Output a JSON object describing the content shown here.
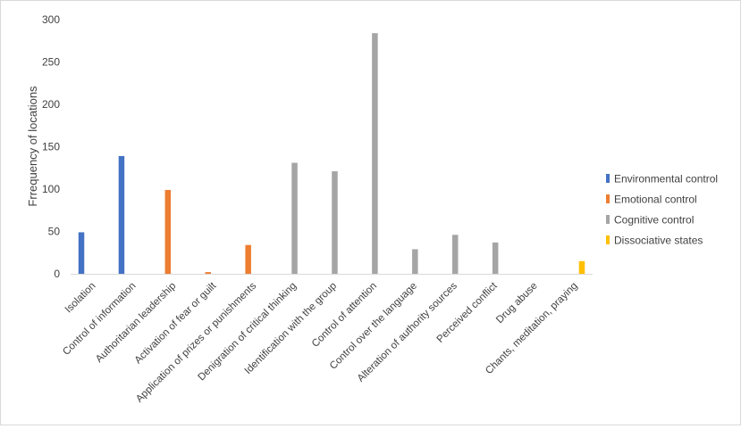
{
  "chart_data": {
    "type": "bar",
    "title": "",
    "xlabel": "",
    "ylabel": "Frrequency of locations",
    "ylim": [
      0,
      300
    ],
    "yticks": [
      0,
      50,
      100,
      150,
      200,
      250,
      300
    ],
    "grid": false,
    "legend_position": "right",
    "categories": [
      "Isolation",
      "Control of information",
      "Authoritarian leadership",
      "Activation of fear or guilt",
      "Application of prizes or punishments",
      "Denigration of critical thinking",
      "Identification with the group",
      "Control of attention",
      "Control over the language",
      "Alteration of authority sources",
      "Perceived conflict",
      "Drug abuse",
      "Chants, meditation, praying"
    ],
    "series": [
      {
        "name": "Environmental control",
        "color": "#4472c4",
        "values": [
          49,
          139,
          0,
          0,
          0,
          0,
          0,
          0,
          0,
          0,
          0,
          0,
          0
        ]
      },
      {
        "name": "Emotional control",
        "color": "#ed7d31",
        "values": [
          0,
          0,
          99,
          2,
          34,
          0,
          0,
          0,
          0,
          0,
          0,
          0,
          0
        ]
      },
      {
        "name": "Cognitive control",
        "color": "#a5a5a5",
        "values": [
          0,
          0,
          0,
          0,
          0,
          131,
          121,
          284,
          29,
          46,
          37,
          0,
          0
        ]
      },
      {
        "name": "Dissociative states",
        "color": "#ffc000",
        "values": [
          0,
          0,
          0,
          0,
          0,
          0,
          0,
          0,
          0,
          0,
          0,
          0,
          15
        ]
      }
    ]
  }
}
